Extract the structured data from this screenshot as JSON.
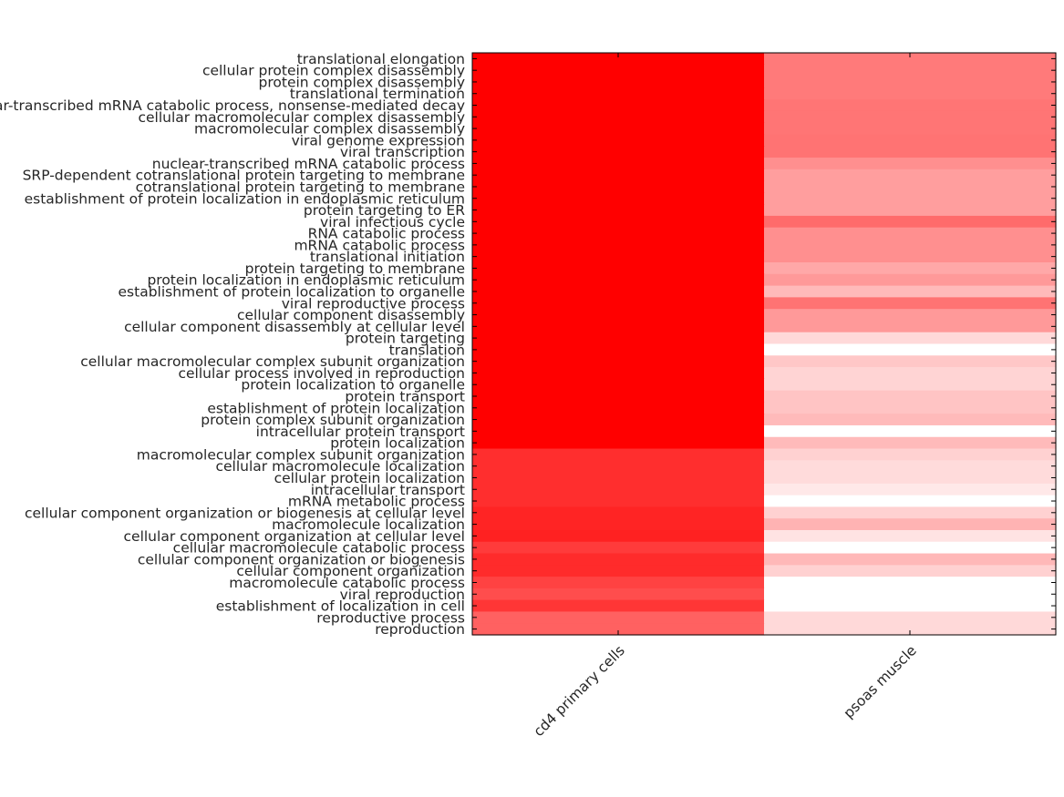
{
  "chart_data": {
    "type": "heatmap",
    "title": "",
    "xlabel": "",
    "ylabel": "",
    "colormap": {
      "low": "#ffffff",
      "high": "#ff0000"
    },
    "grid": false,
    "legend": "none",
    "columns": [
      "cd4 primary cells",
      "psoas muscle"
    ],
    "rows": [
      "translational elongation",
      "cellular protein complex disassembly",
      "protein complex disassembly",
      "translational termination",
      "nuclear-transcribed mRNA catabolic process, nonsense-mediated decay",
      "cellular macromolecular complex disassembly",
      "macromolecular complex disassembly",
      "viral genome expression",
      "viral transcription",
      "nuclear-transcribed mRNA catabolic process",
      "SRP-dependent cotranslational protein targeting to membrane",
      "cotranslational protein targeting to membrane",
      "establishment of protein localization in endoplasmic reticulum",
      "protein targeting to ER",
      "viral infectious cycle",
      "RNA catabolic process",
      "mRNA catabolic process",
      "translational initiation",
      "protein targeting to membrane",
      "protein localization in endoplasmic reticulum",
      "establishment of protein localization to organelle",
      "viral reproductive process",
      "cellular component disassembly",
      "cellular component disassembly at cellular level",
      "protein targeting",
      "translation",
      "cellular macromolecular complex subunit organization",
      "cellular process involved in reproduction",
      "protein localization to organelle",
      "protein transport",
      "establishment of protein localization",
      "protein complex subunit organization",
      "intracellular protein transport",
      "protein localization",
      "macromolecular complex subunit organization",
      "cellular macromolecule localization",
      "cellular protein localization",
      "intracellular transport",
      "mRNA metabolic process",
      "cellular component organization or biogenesis at cellular level",
      "macromolecule localization",
      "cellular component organization at cellular level",
      "cellular macromolecule catabolic process",
      "cellular component organization or biogenesis",
      "cellular component organization",
      "macromolecule catabolic process",
      "viral reproduction",
      "establishment of localization in cell",
      "reproductive process",
      "reproduction"
    ],
    "values": [
      [
        1.0,
        0.52
      ],
      [
        1.0,
        0.52
      ],
      [
        1.0,
        0.52
      ],
      [
        1.0,
        0.52
      ],
      [
        1.0,
        0.54
      ],
      [
        1.0,
        0.54
      ],
      [
        1.0,
        0.54
      ],
      [
        1.0,
        0.55
      ],
      [
        1.0,
        0.55
      ],
      [
        1.0,
        0.44
      ],
      [
        1.0,
        0.38
      ],
      [
        1.0,
        0.38
      ],
      [
        1.0,
        0.38
      ],
      [
        1.0,
        0.38
      ],
      [
        1.0,
        0.58
      ],
      [
        1.0,
        0.44
      ],
      [
        1.0,
        0.44
      ],
      [
        1.0,
        0.44
      ],
      [
        1.0,
        0.34
      ],
      [
        1.0,
        0.4
      ],
      [
        1.0,
        0.27
      ],
      [
        1.0,
        0.55
      ],
      [
        1.0,
        0.4
      ],
      [
        1.0,
        0.4
      ],
      [
        1.0,
        0.15
      ],
      [
        1.0,
        0.0
      ],
      [
        1.0,
        0.22
      ],
      [
        1.0,
        0.17
      ],
      [
        1.0,
        0.17
      ],
      [
        1.0,
        0.23
      ],
      [
        1.0,
        0.23
      ],
      [
        1.0,
        0.27
      ],
      [
        1.0,
        0.0
      ],
      [
        1.0,
        0.27
      ],
      [
        0.82,
        0.18
      ],
      [
        0.82,
        0.14
      ],
      [
        0.82,
        0.14
      ],
      [
        0.82,
        0.09
      ],
      [
        0.82,
        0.0
      ],
      [
        0.86,
        0.18
      ],
      [
        0.86,
        0.3
      ],
      [
        0.87,
        0.11
      ],
      [
        0.77,
        0.0
      ],
      [
        0.83,
        0.28
      ],
      [
        0.83,
        0.18
      ],
      [
        0.74,
        0.0
      ],
      [
        0.7,
        0.0
      ],
      [
        0.79,
        0.0
      ],
      [
        0.62,
        0.15
      ],
      [
        0.62,
        0.15
      ]
    ]
  }
}
